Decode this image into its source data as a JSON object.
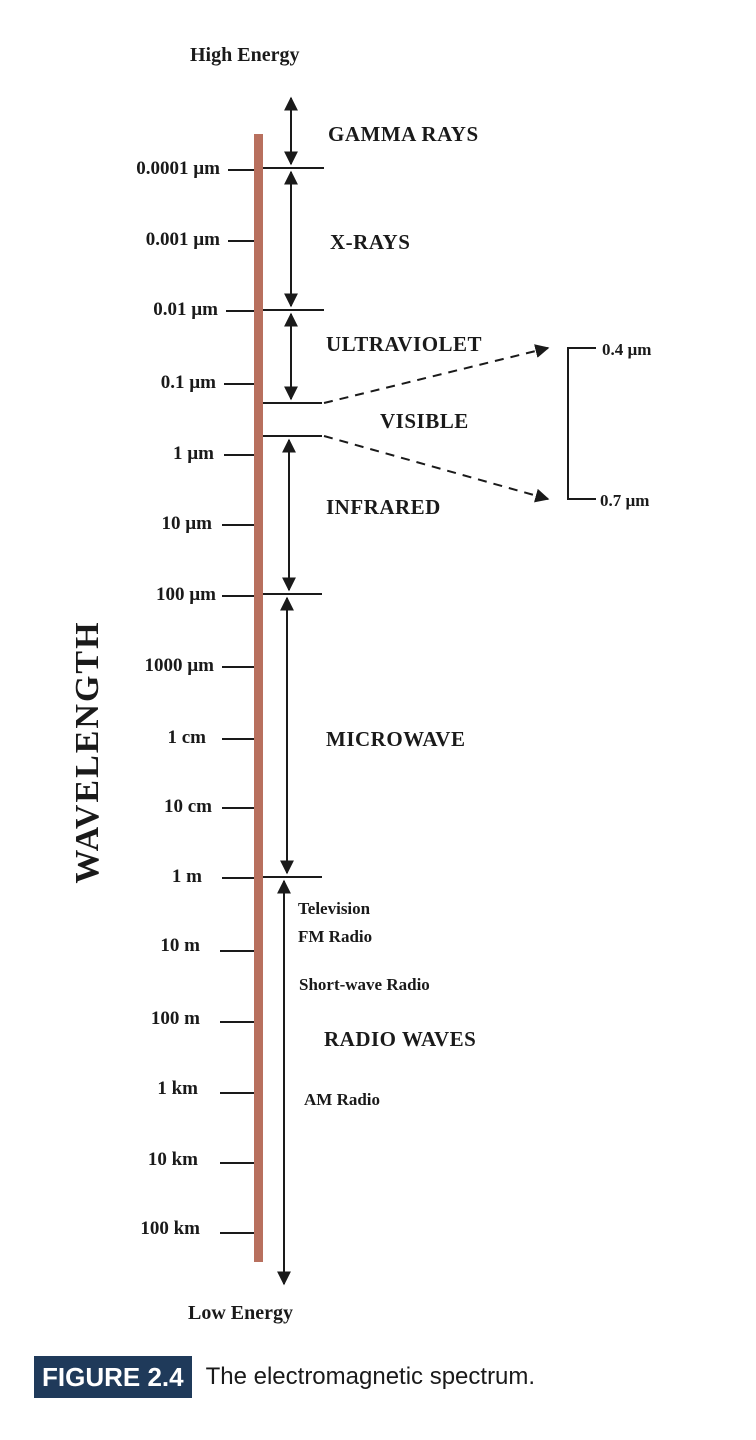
{
  "top_label": "High Energy",
  "bottom_label": "Low Energy",
  "axis_title": "WAVELENGTH",
  "scale_labels": [
    "0.0001 µm",
    "0.001 µm",
    "0.01 µm",
    "0.1 µm",
    "1 µm",
    "10 µm",
    "100 µm",
    "1000 µm",
    "1 cm",
    "10 cm",
    "1 m",
    "10 m",
    "100 m",
    "1 km",
    "10 km",
    "100 km"
  ],
  "bands": {
    "gamma": "GAMMA RAYS",
    "xray": "X-RAYS",
    "uv": "ULTRAVIOLET",
    "visible": "VISIBLE",
    "infrared": "INFRARED",
    "microwave": "MICROWAVE",
    "radio": "RADIO WAVES"
  },
  "radio_uses": {
    "television": "Television",
    "fm": "FM Radio",
    "shortwave": "Short-wave Radio",
    "am": "AM Radio"
  },
  "visible_range": {
    "upper": "0.4 µm",
    "lower": "0.7 µm"
  },
  "caption": {
    "figure": "FIGURE 2.4",
    "text": "The electromagnetic spectrum."
  }
}
